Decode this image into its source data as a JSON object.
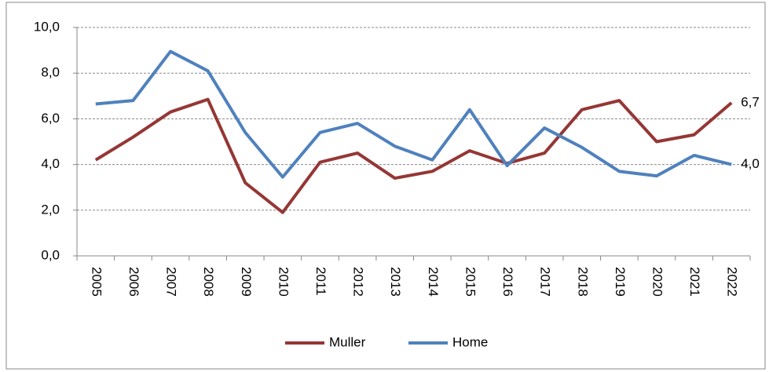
{
  "chart_data": {
    "type": "line",
    "categories": [
      "2005",
      "2006",
      "2007",
      "2008",
      "2009",
      "2010",
      "2011",
      "2012",
      "2013",
      "2014",
      "2015",
      "2016",
      "2017",
      "2018",
      "2019",
      "2020",
      "2021",
      "2022"
    ],
    "series": [
      {
        "name": "Muller",
        "color": "#953735",
        "values": [
          4.2,
          5.2,
          6.3,
          6.85,
          3.2,
          1.9,
          4.1,
          4.5,
          3.4,
          3.7,
          4.6,
          4.05,
          4.5,
          6.4,
          6.8,
          5.0,
          5.3,
          6.7
        ],
        "value_labels": [
          null,
          null,
          null,
          null,
          null,
          null,
          null,
          null,
          null,
          null,
          null,
          null,
          null,
          null,
          null,
          null,
          null,
          "6,7"
        ]
      },
      {
        "name": "Home",
        "color": "#4f81bd",
        "values": [
          6.65,
          6.8,
          8.95,
          8.1,
          5.4,
          3.45,
          5.4,
          5.8,
          4.8,
          4.2,
          6.4,
          3.95,
          5.6,
          4.75,
          3.7,
          3.5,
          4.4,
          4.0
        ],
        "value_labels": [
          null,
          null,
          null,
          null,
          null,
          null,
          null,
          null,
          null,
          null,
          null,
          null,
          null,
          null,
          null,
          null,
          null,
          "4,0"
        ]
      }
    ],
    "ylim": [
      0,
      10
    ],
    "yticks": [
      {
        "value": 0,
        "label": "0,0"
      },
      {
        "value": 2,
        "label": "2,0"
      },
      {
        "value": 4,
        "label": "4,0"
      },
      {
        "value": 6,
        "label": "6,0"
      },
      {
        "value": 8,
        "label": "8,0"
      },
      {
        "value": 10,
        "label": "10,0"
      }
    ],
    "grid": true,
    "legend": "bottom"
  }
}
